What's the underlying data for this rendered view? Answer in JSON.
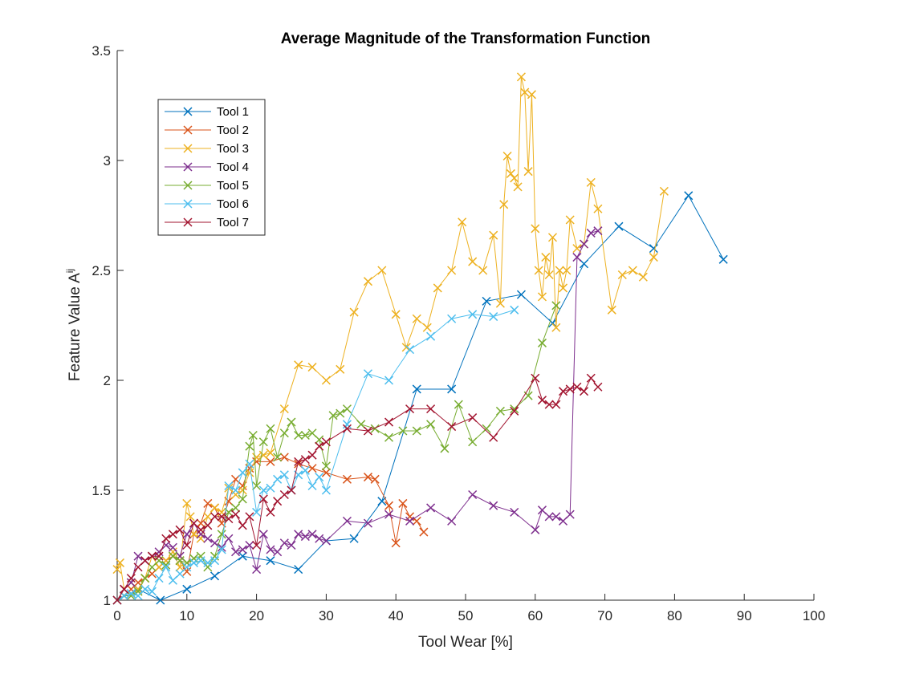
{
  "chart_data": {
    "type": "line",
    "title": "Average Magnitude of the Transformation Function",
    "xlabel": "Tool Wear [%]",
    "ylabel_base": "Feature Value A",
    "ylabel_sup": "ij",
    "xlim": [
      0,
      100
    ],
    "ylim": [
      1,
      3.5
    ],
    "xticks": [
      0,
      10,
      20,
      30,
      40,
      50,
      60,
      70,
      80,
      90,
      100
    ],
    "yticks": [
      1,
      1.5,
      2,
      2.5,
      3,
      3.5
    ],
    "ytick_labels": [
      "1",
      "1.5",
      "2",
      "2.5",
      "3",
      "3.5"
    ],
    "grid": false,
    "legend_position": "top-left",
    "marker": "x",
    "series": [
      {
        "name": "Tool 1",
        "color": "#0072BD",
        "points": [
          [
            0,
            1.0
          ],
          [
            1,
            1.02
          ],
          [
            2,
            1.03
          ],
          [
            3,
            1.05
          ],
          [
            6.2,
            1.0
          ],
          [
            10,
            1.05
          ],
          [
            14,
            1.11
          ],
          [
            18,
            1.2
          ],
          [
            22,
            1.18
          ],
          [
            26,
            1.14
          ],
          [
            30,
            1.27
          ],
          [
            34,
            1.28
          ],
          [
            38,
            1.45
          ],
          [
            43,
            1.96
          ],
          [
            48,
            1.96
          ],
          [
            53,
            2.36
          ],
          [
            58,
            2.39
          ],
          [
            62.5,
            2.26
          ],
          [
            67,
            2.53
          ],
          [
            72,
            2.7
          ],
          [
            77,
            2.6
          ],
          [
            82,
            2.84
          ],
          [
            87,
            2.55
          ]
        ]
      },
      {
        "name": "Tool 2",
        "color": "#D95319",
        "points": [
          [
            0,
            1.0
          ],
          [
            1,
            1.02
          ],
          [
            2,
            1.05
          ],
          [
            3,
            1.08
          ],
          [
            4,
            1.1
          ],
          [
            5,
            1.12
          ],
          [
            6,
            1.15
          ],
          [
            7,
            1.18
          ],
          [
            8,
            1.2
          ],
          [
            9,
            1.18
          ],
          [
            10,
            1.13
          ],
          [
            11,
            1.3
          ],
          [
            12,
            1.35
          ],
          [
            13,
            1.44
          ],
          [
            14,
            1.42
          ],
          [
            15,
            1.35
          ],
          [
            16,
            1.45
          ],
          [
            17,
            1.55
          ],
          [
            18,
            1.52
          ],
          [
            19,
            1.6
          ],
          [
            20,
            1.63
          ],
          [
            22,
            1.63
          ],
          [
            24,
            1.65
          ],
          [
            26,
            1.62
          ],
          [
            28,
            1.6
          ],
          [
            30,
            1.58
          ],
          [
            33,
            1.55
          ],
          [
            36,
            1.56
          ],
          [
            37,
            1.55
          ],
          [
            39,
            1.43
          ],
          [
            40,
            1.26
          ],
          [
            41,
            1.44
          ],
          [
            42,
            1.38
          ],
          [
            43,
            1.36
          ],
          [
            44,
            1.31
          ]
        ]
      },
      {
        "name": "Tool 3",
        "color": "#EDB120",
        "points": [
          [
            0,
            1.14
          ],
          [
            0.4,
            1.17
          ],
          [
            1,
            1.05
          ],
          [
            2,
            1.08
          ],
          [
            3,
            1.05
          ],
          [
            4,
            1.1
          ],
          [
            5,
            1.2
          ],
          [
            6,
            1.15
          ],
          [
            7,
            1.18
          ],
          [
            8,
            1.22
          ],
          [
            9,
            1.15
          ],
          [
            10,
            1.44
          ],
          [
            10.5,
            1.38
          ],
          [
            11,
            1.3
          ],
          [
            12,
            1.28
          ],
          [
            13,
            1.38
          ],
          [
            14,
            1.42
          ],
          [
            15,
            1.4
          ],
          [
            16,
            1.51
          ],
          [
            17,
            1.48
          ],
          [
            18,
            1.5
          ],
          [
            19,
            1.58
          ],
          [
            20,
            1.65
          ],
          [
            21,
            1.66
          ],
          [
            22,
            1.67
          ],
          [
            24,
            1.87
          ],
          [
            26,
            2.07
          ],
          [
            28,
            2.06
          ],
          [
            30,
            2.0
          ],
          [
            32,
            2.05
          ],
          [
            34,
            2.31
          ],
          [
            36,
            2.45
          ],
          [
            38,
            2.5
          ],
          [
            40,
            2.3
          ],
          [
            41.5,
            2.15
          ],
          [
            43,
            2.28
          ],
          [
            44.5,
            2.24
          ],
          [
            46,
            2.42
          ],
          [
            48,
            2.5
          ],
          [
            49.5,
            2.72
          ],
          [
            51,
            2.54
          ],
          [
            52.5,
            2.5
          ],
          [
            54,
            2.66
          ],
          [
            55,
            2.35
          ],
          [
            55.5,
            2.8
          ],
          [
            56,
            3.02
          ],
          [
            56.5,
            2.94
          ],
          [
            57,
            2.92
          ],
          [
            57.5,
            2.88
          ],
          [
            58,
            3.38
          ],
          [
            58.5,
            3.31
          ],
          [
            59,
            2.95
          ],
          [
            59.5,
            3.3
          ],
          [
            60,
            2.69
          ],
          [
            60.5,
            2.5
          ],
          [
            61,
            2.38
          ],
          [
            61.5,
            2.56
          ],
          [
            62,
            2.48
          ],
          [
            62.5,
            2.65
          ],
          [
            63,
            2.24
          ],
          [
            63.5,
            2.5
          ],
          [
            64,
            2.42
          ],
          [
            64.5,
            2.5
          ],
          [
            65,
            2.73
          ],
          [
            66,
            2.6
          ],
          [
            67,
            2.62
          ],
          [
            68,
            2.9
          ],
          [
            69,
            2.78
          ],
          [
            71,
            2.32
          ],
          [
            72.5,
            2.48
          ],
          [
            74,
            2.5
          ],
          [
            75.5,
            2.47
          ],
          [
            77,
            2.56
          ],
          [
            78.5,
            2.86
          ]
        ]
      },
      {
        "name": "Tool 4",
        "color": "#7E2F8E",
        "points": [
          [
            0,
            1.0
          ],
          [
            1,
            1.05
          ],
          [
            2,
            1.08
          ],
          [
            3,
            1.2
          ],
          [
            4,
            1.18
          ],
          [
            5,
            1.2
          ],
          [
            6,
            1.22
          ],
          [
            7,
            1.25
          ],
          [
            8,
            1.24
          ],
          [
            9,
            1.2
          ],
          [
            10,
            1.3
          ],
          [
            11,
            1.35
          ],
          [
            12,
            1.3
          ],
          [
            13,
            1.28
          ],
          [
            14,
            1.26
          ],
          [
            15,
            1.24
          ],
          [
            16,
            1.28
          ],
          [
            17,
            1.22
          ],
          [
            18,
            1.23
          ],
          [
            19,
            1.25
          ],
          [
            20,
            1.14
          ],
          [
            21,
            1.3
          ],
          [
            22,
            1.23
          ],
          [
            23,
            1.22
          ],
          [
            24,
            1.26
          ],
          [
            25,
            1.25
          ],
          [
            26,
            1.3
          ],
          [
            27,
            1.29
          ],
          [
            28,
            1.3
          ],
          [
            29,
            1.28
          ],
          [
            30,
            1.27
          ],
          [
            33,
            1.36
          ],
          [
            36,
            1.35
          ],
          [
            39,
            1.39
          ],
          [
            42,
            1.36
          ],
          [
            45,
            1.42
          ],
          [
            48,
            1.36
          ],
          [
            51,
            1.48
          ],
          [
            54,
            1.43
          ],
          [
            57,
            1.4
          ],
          [
            60,
            1.32
          ],
          [
            61,
            1.41
          ],
          [
            62,
            1.38
          ],
          [
            63,
            1.38
          ],
          [
            64,
            1.36
          ],
          [
            65,
            1.39
          ],
          [
            66,
            2.56
          ],
          [
            67,
            2.62
          ],
          [
            68,
            2.67
          ],
          [
            69,
            2.68
          ]
        ]
      },
      {
        "name": "Tool 5",
        "color": "#77AC30",
        "points": [
          [
            0,
            1.0
          ],
          [
            1,
            1.02
          ],
          [
            2,
            1.02
          ],
          [
            3,
            1.04
          ],
          [
            4,
            1.1
          ],
          [
            5,
            1.15
          ],
          [
            6,
            1.18
          ],
          [
            7,
            1.16
          ],
          [
            8,
            1.2
          ],
          [
            9,
            1.18
          ],
          [
            10,
            1.17
          ],
          [
            11,
            1.19
          ],
          [
            12,
            1.2
          ],
          [
            13,
            1.15
          ],
          [
            14,
            1.2
          ],
          [
            15,
            1.3
          ],
          [
            16,
            1.4
          ],
          [
            17,
            1.42
          ],
          [
            18,
            1.46
          ],
          [
            19,
            1.7
          ],
          [
            19.5,
            1.75
          ],
          [
            20,
            1.52
          ],
          [
            21,
            1.72
          ],
          [
            22,
            1.78
          ],
          [
            23,
            1.65
          ],
          [
            24,
            1.76
          ],
          [
            25,
            1.81
          ],
          [
            26,
            1.75
          ],
          [
            27,
            1.75
          ],
          [
            28,
            1.76
          ],
          [
            29,
            1.73
          ],
          [
            30,
            1.61
          ],
          [
            31,
            1.84
          ],
          [
            32,
            1.85
          ],
          [
            33,
            1.87
          ],
          [
            35,
            1.8
          ],
          [
            37,
            1.78
          ],
          [
            39,
            1.74
          ],
          [
            41,
            1.77
          ],
          [
            43,
            1.77
          ],
          [
            45,
            1.8
          ],
          [
            47,
            1.69
          ],
          [
            49,
            1.89
          ],
          [
            51,
            1.72
          ],
          [
            53,
            1.78
          ],
          [
            55,
            1.86
          ],
          [
            57,
            1.87
          ],
          [
            59,
            1.93
          ],
          [
            61,
            2.17
          ],
          [
            63,
            2.34
          ]
        ]
      },
      {
        "name": "Tool 6",
        "color": "#4DBEEE",
        "points": [
          [
            0,
            1.0
          ],
          [
            1,
            1.02
          ],
          [
            2,
            1.03
          ],
          [
            3,
            1.02
          ],
          [
            4,
            1.05
          ],
          [
            5,
            1.04
          ],
          [
            6,
            1.1
          ],
          [
            7,
            1.15
          ],
          [
            8,
            1.09
          ],
          [
            9,
            1.12
          ],
          [
            10,
            1.15
          ],
          [
            11,
            1.17
          ],
          [
            12,
            1.18
          ],
          [
            13,
            1.17
          ],
          [
            14,
            1.18
          ],
          [
            15,
            1.23
          ],
          [
            16,
            1.52
          ],
          [
            17,
            1.5
          ],
          [
            18,
            1.58
          ],
          [
            19,
            1.62
          ],
          [
            20,
            1.4
          ],
          [
            21,
            1.5
          ],
          [
            22,
            1.51
          ],
          [
            23,
            1.55
          ],
          [
            24,
            1.57
          ],
          [
            25,
            1.5
          ],
          [
            26,
            1.57
          ],
          [
            27,
            1.59
          ],
          [
            28,
            1.52
          ],
          [
            29,
            1.56
          ],
          [
            30,
            1.5
          ],
          [
            33,
            1.8
          ],
          [
            36,
            2.03
          ],
          [
            39,
            2.0
          ],
          [
            42,
            2.14
          ],
          [
            45,
            2.2
          ],
          [
            48,
            2.28
          ],
          [
            51,
            2.3
          ],
          [
            54,
            2.29
          ],
          [
            57,
            2.32
          ]
        ]
      },
      {
        "name": "Tool 7",
        "color": "#A2142F",
        "points": [
          [
            0,
            1.0
          ],
          [
            1,
            1.05
          ],
          [
            2,
            1.1
          ],
          [
            3,
            1.15
          ],
          [
            4,
            1.18
          ],
          [
            5,
            1.2
          ],
          [
            6,
            1.2
          ],
          [
            7,
            1.28
          ],
          [
            8,
            1.3
          ],
          [
            9,
            1.32
          ],
          [
            10,
            1.25
          ],
          [
            11,
            1.35
          ],
          [
            12,
            1.32
          ],
          [
            13,
            1.34
          ],
          [
            14,
            1.38
          ],
          [
            15,
            1.38
          ],
          [
            16,
            1.37
          ],
          [
            17,
            1.39
          ],
          [
            18,
            1.34
          ],
          [
            19,
            1.38
          ],
          [
            20,
            1.25
          ],
          [
            21,
            1.46
          ],
          [
            22,
            1.4
          ],
          [
            23,
            1.45
          ],
          [
            24,
            1.48
          ],
          [
            25,
            1.5
          ],
          [
            26,
            1.63
          ],
          [
            27,
            1.64
          ],
          [
            28,
            1.66
          ],
          [
            29,
            1.7
          ],
          [
            30,
            1.72
          ],
          [
            33,
            1.78
          ],
          [
            36,
            1.77
          ],
          [
            39,
            1.81
          ],
          [
            42,
            1.87
          ],
          [
            45,
            1.87
          ],
          [
            48,
            1.79
          ],
          [
            51,
            1.83
          ],
          [
            54,
            1.74
          ],
          [
            57,
            1.86
          ],
          [
            60,
            2.01
          ],
          [
            61,
            1.91
          ],
          [
            62,
            1.89
          ],
          [
            63,
            1.89
          ],
          [
            64,
            1.95
          ],
          [
            65,
            1.96
          ],
          [
            66,
            1.97
          ],
          [
            67,
            1.95
          ],
          [
            68,
            2.01
          ],
          [
            69,
            1.97
          ]
        ]
      }
    ]
  }
}
